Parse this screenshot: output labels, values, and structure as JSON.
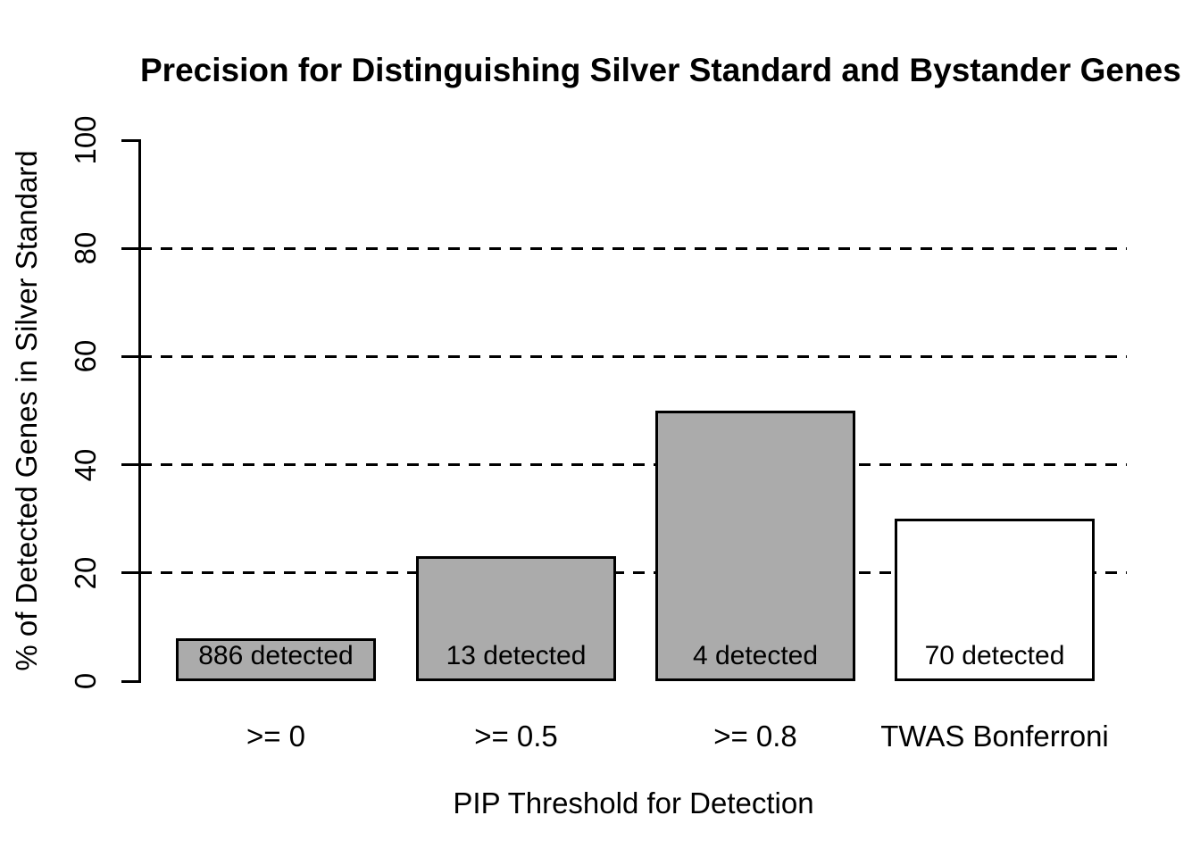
{
  "chart_data": {
    "type": "bar",
    "title": "Precision for Distinguishing Silver Standard and Bystander Genes",
    "xlabel": "PIP Threshold for Detection",
    "ylabel": "% of Detected Genes in Silver Standard",
    "categories": [
      ">= 0",
      ">= 0.5",
      ">= 0.8",
      "TWAS Bonferroni"
    ],
    "values": [
      7.9,
      23.1,
      50,
      30
    ],
    "bar_labels": [
      "886 detected",
      "13 detected",
      "4 detected",
      "70 detected"
    ],
    "detected_counts": [
      886,
      13,
      4,
      70
    ],
    "bar_colors": [
      "#ababab",
      "#ababab",
      "#ababab",
      "#ffffff"
    ],
    "bar_border_color": "#000000",
    "ylim": [
      0,
      100
    ],
    "yticks": [
      0,
      20,
      40,
      60,
      80,
      100
    ],
    "gridlines": [
      20,
      40,
      60,
      80
    ],
    "grid_style": "dashed",
    "legend_position": "none",
    "background_color": "#ffffff",
    "text_color": "#000000"
  }
}
